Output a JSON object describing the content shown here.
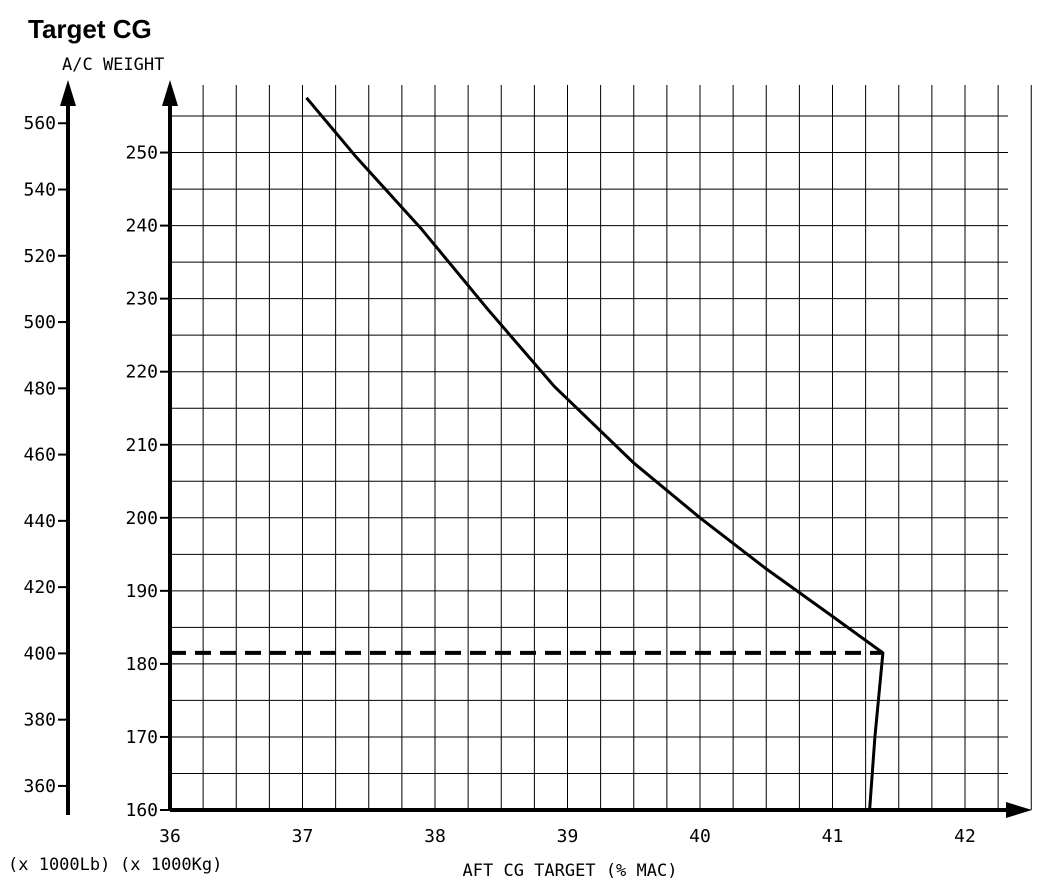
{
  "title": "Target CG",
  "chart_data": {
    "type": "line",
    "title": "Target CG",
    "ylabel": "A/C WEIGHT",
    "xlabel": "AFT CG TARGET (% MAC)",
    "unit_lb": "(x 1000Lb)",
    "unit_kg": "(x 1000Kg)",
    "xlim": [
      36,
      42.5
    ],
    "ylim_kg": [
      160,
      257
    ],
    "ylim_lb": [
      352.7,
      566.6
    ],
    "x_ticks": [
      36,
      37,
      38,
      39,
      40,
      41,
      42
    ],
    "y_ticks_kg": [
      160,
      170,
      180,
      190,
      200,
      210,
      220,
      230,
      240,
      250
    ],
    "y_ticks_lb": [
      360,
      380,
      400,
      420,
      440,
      460,
      480,
      500,
      520,
      540,
      560
    ],
    "grid": true,
    "series": [
      {
        "style": "solid",
        "x": [
          37.03,
          37.4,
          37.9,
          38.4,
          38.9,
          39.5,
          40.0,
          40.5,
          41.0,
          41.38,
          41.32,
          41.28
        ],
        "y": [
          257.5,
          249.5,
          239.5,
          228.5,
          218,
          207.5,
          200,
          193,
          186.5,
          181.5,
          170,
          160
        ]
      },
      {
        "style": "dashed",
        "x": [
          36,
          41.38
        ],
        "y": [
          181.5,
          181.5
        ]
      }
    ]
  }
}
